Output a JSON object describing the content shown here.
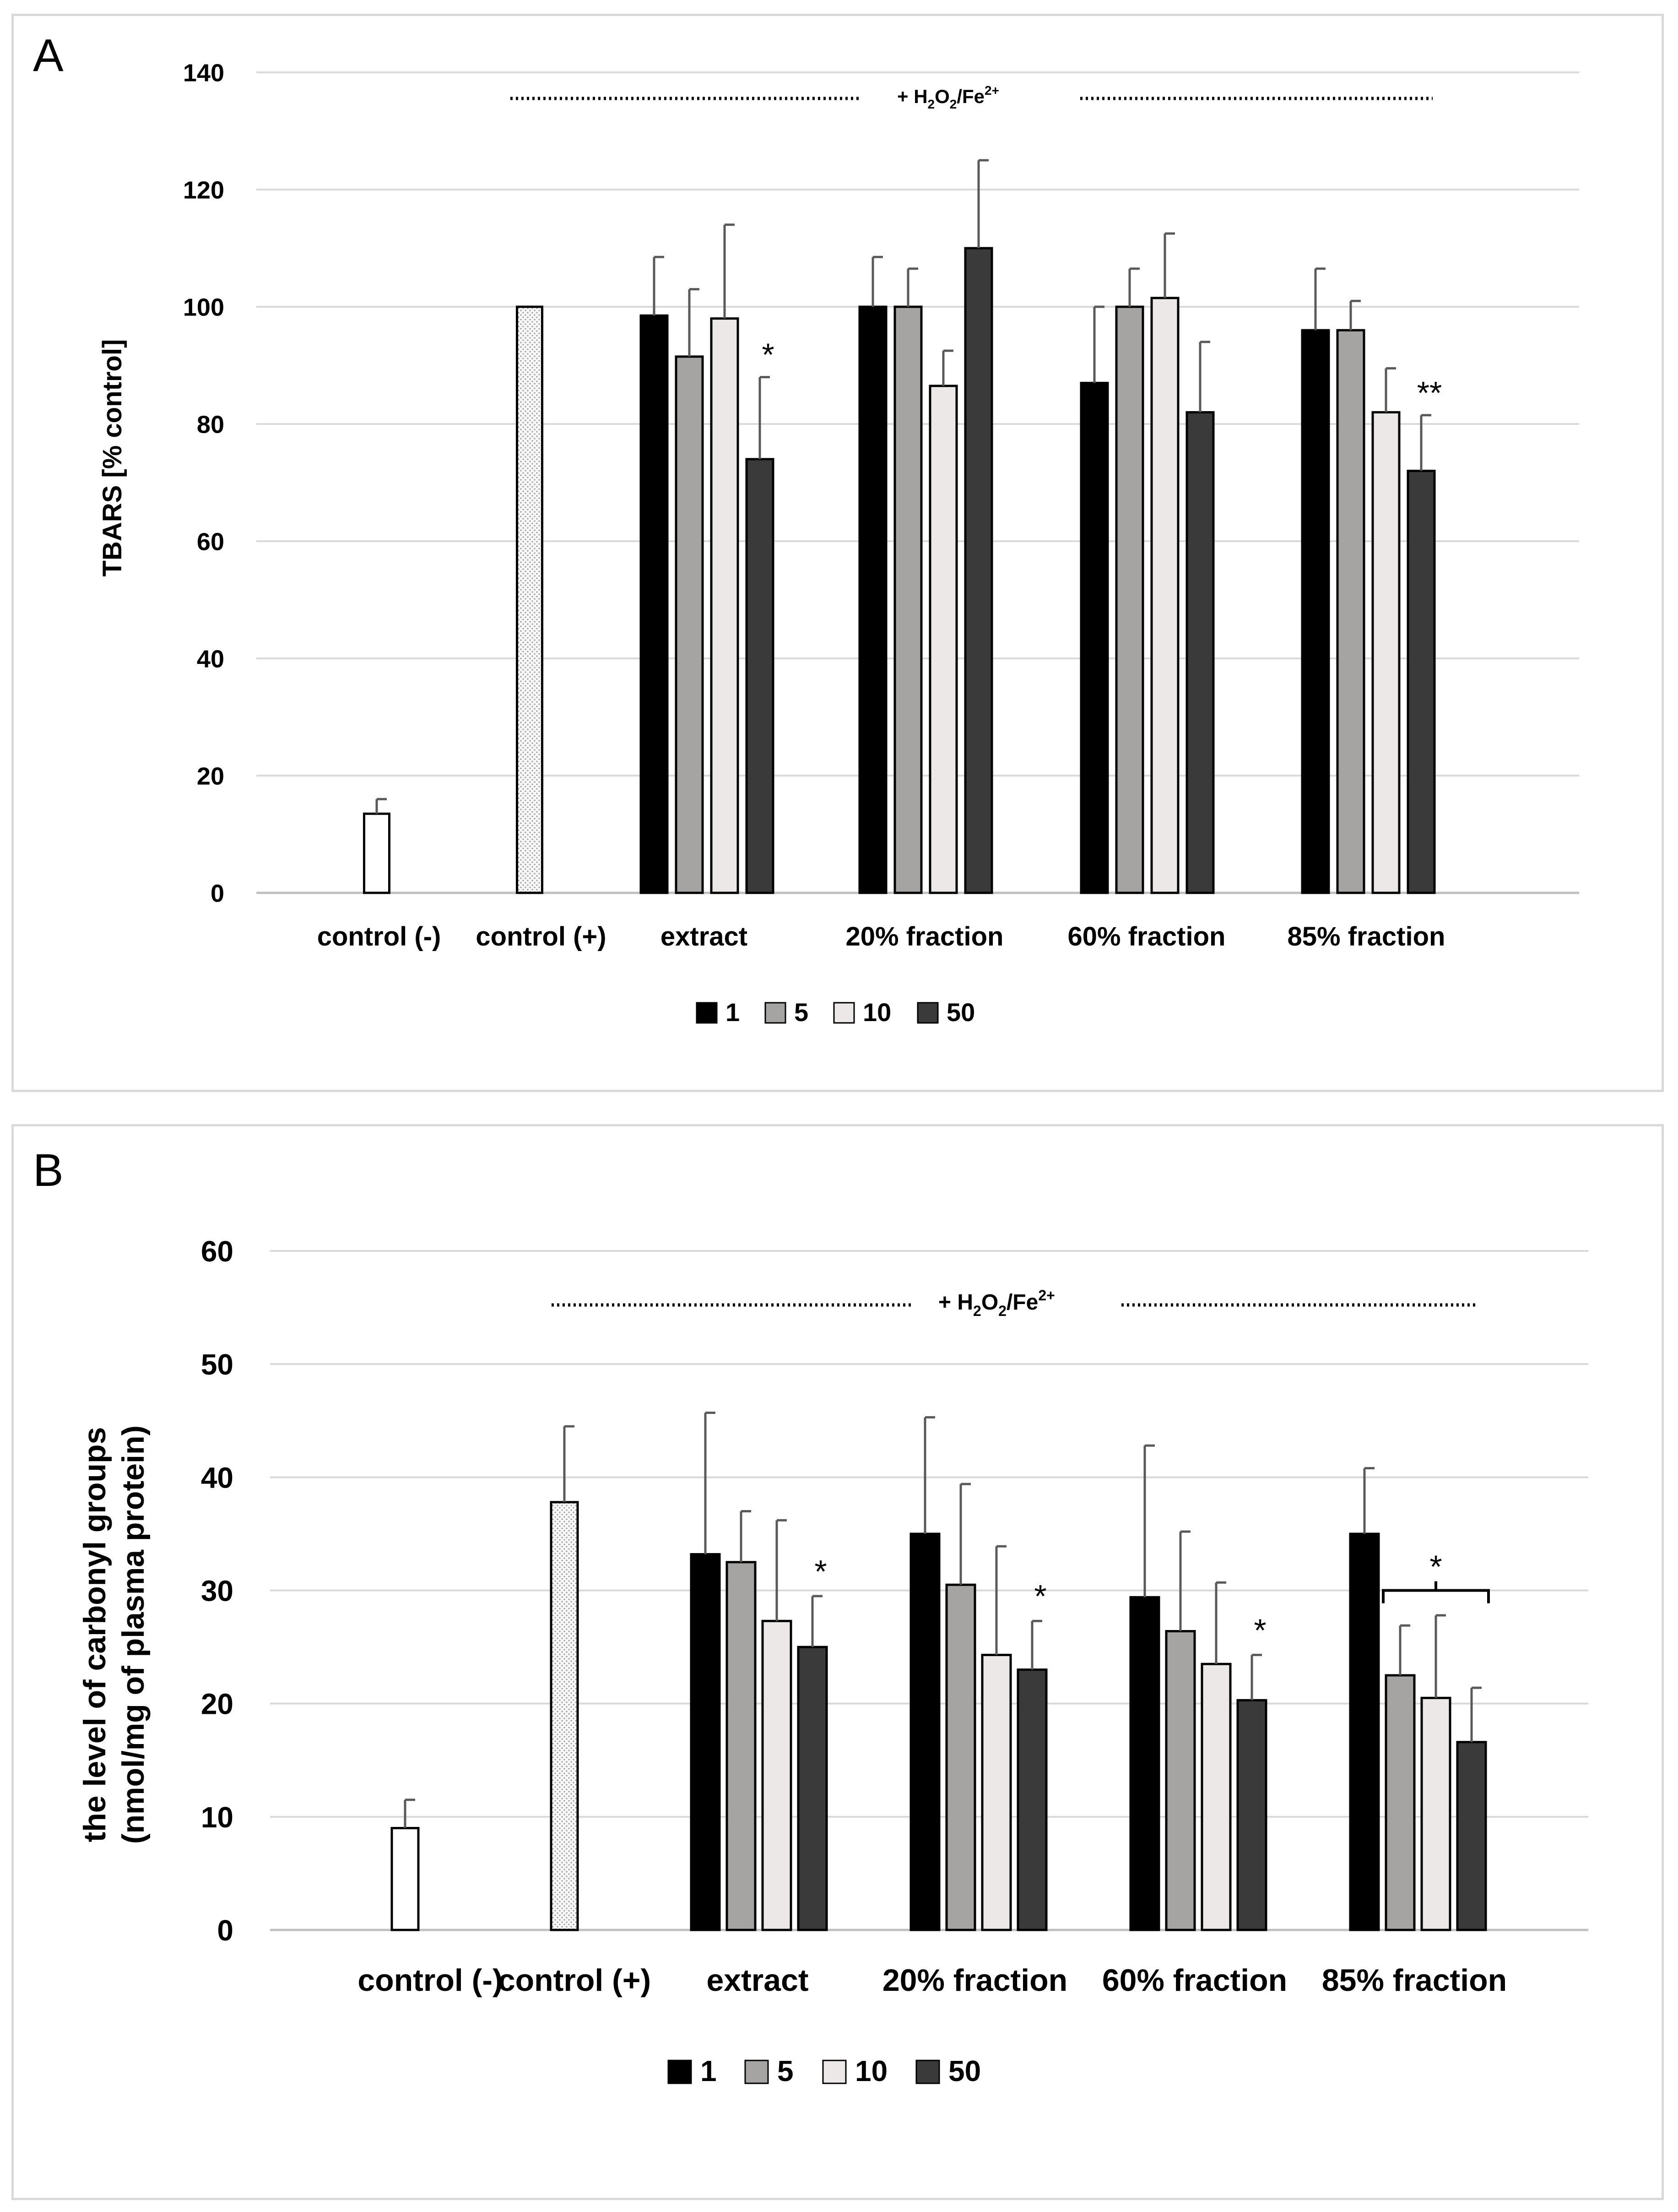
{
  "colors": {
    "s1": "#000000",
    "s5": "#a6a3a3",
    "s10": "#ece8e8",
    "s50": "#3a3a3a",
    "control_neg": "#ffffff",
    "control_pos": "#f4f4f4",
    "grid": "#d9d9d9"
  },
  "chart_data": [
    {
      "type": "bar",
      "panel": "A",
      "ylabel": "TBARS [% control]",
      "ylim": [
        0,
        140
      ],
      "yticks": [
        0,
        20,
        40,
        60,
        80,
        100,
        120,
        140
      ],
      "treatment_label": "+ H₂O₂/Fe²⁺",
      "categories": [
        "control (-)",
        "control (+)",
        "extract",
        "20% fraction",
        "60% fraction",
        "85% fraction"
      ],
      "controls": [
        {
          "category": "control (-)",
          "value": 13.5,
          "error": 2.5,
          "style": "control_neg"
        },
        {
          "category": "control (+)",
          "value": 100,
          "error": 0,
          "style": "control_pos"
        }
      ],
      "series": [
        {
          "name": "1",
          "values": [
            null,
            null,
            98.5,
            100,
            87,
            96
          ],
          "errors": [
            null,
            null,
            10,
            8.5,
            13,
            10.5
          ]
        },
        {
          "name": "5",
          "values": [
            null,
            null,
            91.5,
            100,
            100,
            96
          ],
          "errors": [
            null,
            null,
            11.5,
            6.5,
            6.5,
            5
          ]
        },
        {
          "name": "10",
          "values": [
            null,
            null,
            98,
            86.5,
            101.5,
            82
          ],
          "errors": [
            null,
            null,
            16,
            6,
            11,
            7.5
          ]
        },
        {
          "name": "50",
          "values": [
            null,
            null,
            74,
            110,
            82,
            72
          ],
          "errors": [
            null,
            null,
            14,
            15,
            12,
            9.5
          ]
        }
      ],
      "annotations": [
        {
          "text": "*",
          "category": "extract",
          "series": "50"
        },
        {
          "text": "**",
          "category": "85% fraction",
          "series": "50"
        }
      ],
      "legend": [
        "1",
        "5",
        "10",
        "50"
      ],
      "legend_position": "bottom-center"
    },
    {
      "type": "bar",
      "panel": "B",
      "ylabel": [
        "the level of carbonyl groups",
        "(nmol/mg of plasma protein)"
      ],
      "ylim": [
        0,
        60
      ],
      "yticks": [
        0,
        10,
        20,
        30,
        40,
        50,
        60
      ],
      "treatment_label": "+ H₂O₂/Fe²⁺",
      "categories": [
        "control (-)",
        "control (+)",
        "extract",
        "20% fraction",
        "60% fraction",
        "85% fraction"
      ],
      "controls": [
        {
          "category": "control (-)",
          "value": 9,
          "error": 2.5,
          "style": "control_neg"
        },
        {
          "category": "control (+)",
          "value": 37.8,
          "error": 6.7,
          "style": "control_pos"
        }
      ],
      "series": [
        {
          "name": "1",
          "values": [
            null,
            null,
            33.2,
            35,
            29.4,
            35
          ],
          "errors": [
            null,
            null,
            12.5,
            10.3,
            13.4,
            5.8
          ]
        },
        {
          "name": "5",
          "values": [
            null,
            null,
            32.5,
            30.5,
            26.4,
            22.5
          ],
          "errors": [
            null,
            null,
            4.5,
            8.9,
            8.8,
            4.4
          ]
        },
        {
          "name": "10",
          "values": [
            null,
            null,
            27.3,
            24.3,
            23.5,
            20.5
          ],
          "errors": [
            null,
            null,
            8.9,
            9.6,
            7.2,
            7.3
          ]
        },
        {
          "name": "50",
          "values": [
            null,
            null,
            25,
            23,
            20.3,
            16.6
          ],
          "errors": [
            null,
            null,
            4.5,
            4.3,
            4,
            4.8
          ]
        }
      ],
      "annotations": [
        {
          "text": "*",
          "category": "extract",
          "series": "50"
        },
        {
          "text": "*",
          "category": "20% fraction",
          "series": "50"
        },
        {
          "text": "*",
          "category": "60% fraction",
          "series": "50"
        },
        {
          "text": "*",
          "category": "85% fraction",
          "series": "5-50",
          "bracket": true,
          "level": 30
        }
      ],
      "legend": [
        "1",
        "5",
        "10",
        "50"
      ],
      "legend_position": "bottom-center"
    }
  ],
  "panelA": {
    "letter": "A",
    "ylabel": "TBARS [% control]",
    "treat_prefix": "+ H",
    "treat_sub1": "2",
    "treat_mid": "O",
    "treat_sub2": "2",
    "treat_fe": "/Fe",
    "treat_sup": "2+",
    "categories": [
      "control (-)",
      "control (+)",
      "extract",
      "20% fraction",
      "60% fraction",
      "85% fraction"
    ],
    "legend": [
      "1",
      "5",
      "10",
      "50"
    ]
  },
  "panelB": {
    "letter": "B",
    "ylabel_line1": "the level of carbonyl groups",
    "ylabel_line2": "(nmol/mg of plasma protein)",
    "treat_prefix": "+ H",
    "treat_sub1": "2",
    "treat_mid": "O",
    "treat_sub2": "2",
    "treat_fe": "/Fe",
    "treat_sup": "2+",
    "categories": [
      "control (-)",
      "control (+)",
      "extract",
      "20% fraction",
      "60% fraction",
      "85% fraction"
    ],
    "legend": [
      "1",
      "5",
      "10",
      "50"
    ]
  }
}
